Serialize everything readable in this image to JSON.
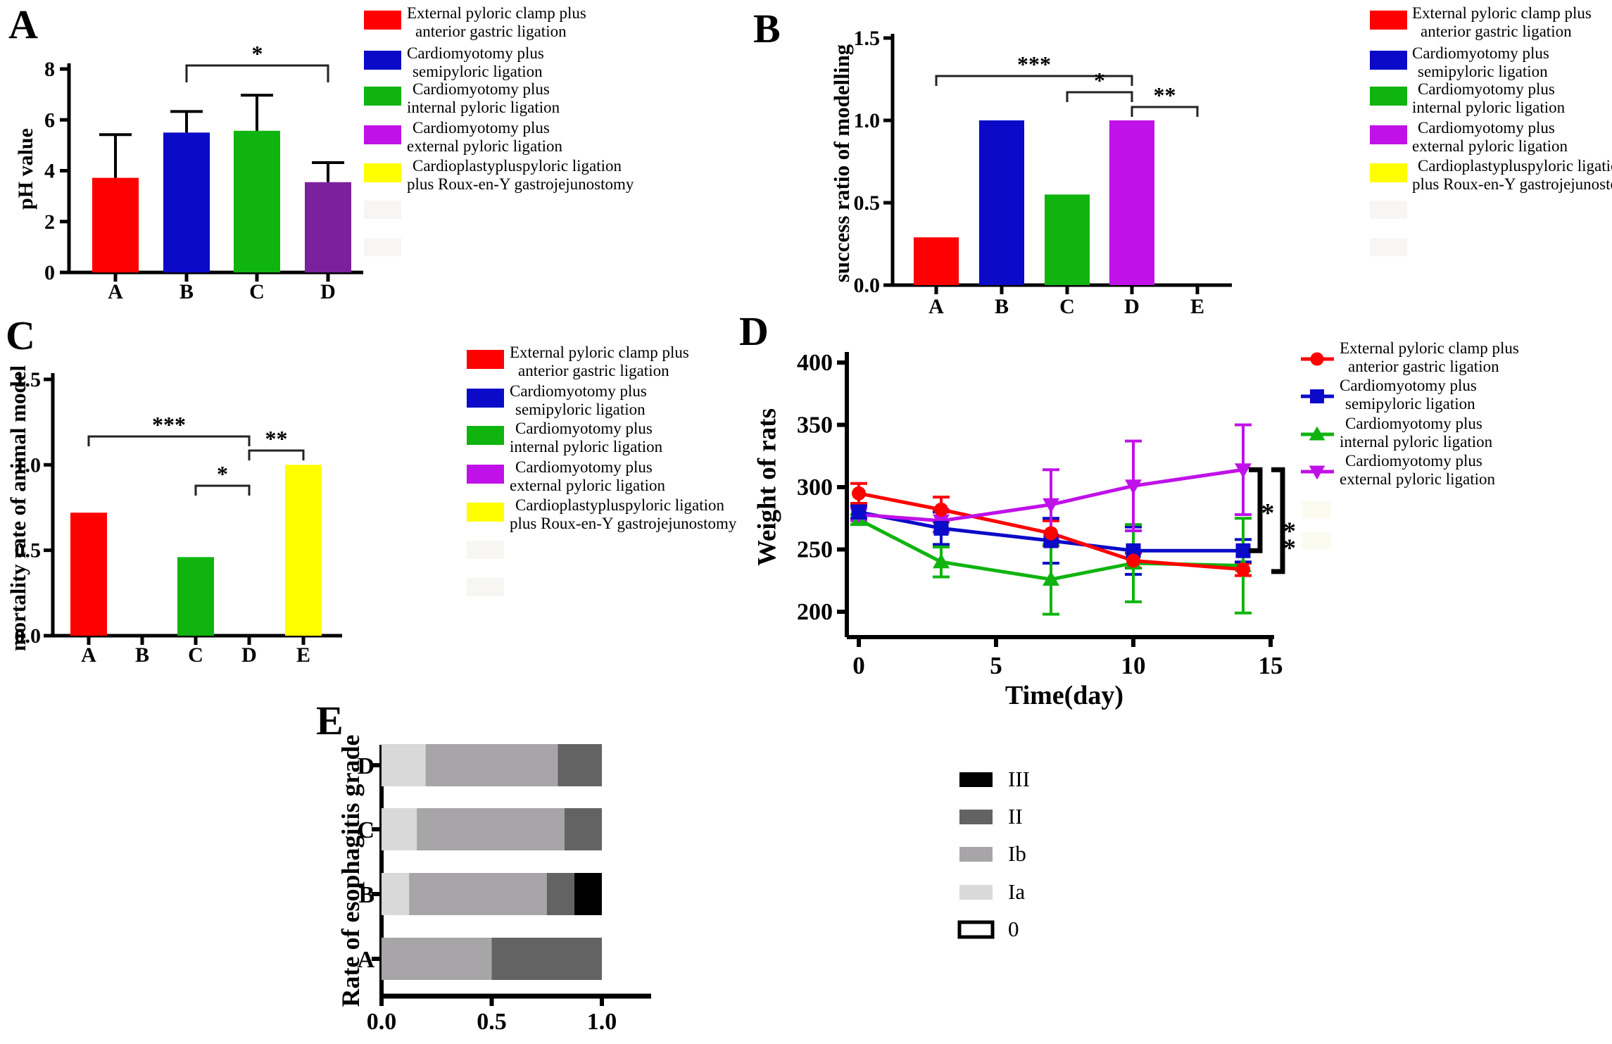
{
  "treatment_legend": [
    {
      "color": "#FF0000",
      "lines": [
        "External pyloric clamp plus",
        "anterior gastric ligation"
      ]
    },
    {
      "color": "#0A0AC8",
      "lines": [
        "Cardiomyotomy plus",
        "semipyloric ligation"
      ]
    },
    {
      "color": "#0FB40F",
      "lines": [
        "Cardiomyotomy plus",
        "internal pyloric ligation"
      ]
    },
    {
      "color": "#C011E8",
      "lines": [
        "Cardiomyotomy plus",
        "external  pyloric ligation"
      ]
    },
    {
      "color": "#FFFF00",
      "lines": [
        "Cardioplastypluspyloric ligation",
        "plus Roux-en-Y gastrojejunostomy"
      ]
    }
  ],
  "chart_data": [
    {
      "panel_label": "A",
      "type": "bar",
      "ylabel": "pH value",
      "ylim": [
        0,
        8
      ],
      "ytick_values": [
        0,
        2,
        4,
        6,
        8
      ],
      "ytick_labels": [
        "0",
        "2",
        "4",
        "6",
        "8"
      ],
      "categories": [
        "A",
        "B",
        "C",
        "D"
      ],
      "values": [
        3.72,
        5.5,
        5.57,
        3.55
      ],
      "errors_up": [
        1.7,
        0.83,
        1.4,
        0.77
      ],
      "bar_colors": [
        "#FF0000",
        "#0A0AC8",
        "#0FB40F",
        "#7B219E"
      ],
      "significance": [
        {
          "groups": [
            "B",
            "D"
          ],
          "label": "*"
        }
      ]
    },
    {
      "panel_label": "B",
      "type": "bar",
      "ylabel": "success ratio of modelling",
      "ylim": [
        0,
        1.5
      ],
      "ytick_values": [
        0,
        0.5,
        1.0,
        1.5
      ],
      "ytick_labels": [
        "0.0",
        "0.5",
        "1.0",
        "1.5"
      ],
      "categories": [
        "A",
        "B",
        "C",
        "D",
        "E"
      ],
      "values": [
        0.29,
        1.0,
        0.55,
        1.0,
        0
      ],
      "errors_up": [
        0,
        0,
        0,
        0,
        0
      ],
      "bar_colors": [
        "#FF0000",
        "#0A0AC8",
        "#0FB40F",
        "#C011E8",
        "#C011E8"
      ],
      "significance": [
        {
          "groups": [
            "A",
            "D"
          ],
          "label": "***"
        },
        {
          "groups": [
            "C",
            "D"
          ],
          "label": "*"
        },
        {
          "groups": [
            "D",
            "E"
          ],
          "label": "**"
        }
      ]
    },
    {
      "panel_label": "C",
      "type": "bar",
      "ylabel": "mortality rate of animal model",
      "ylim": [
        0,
        1.5
      ],
      "ytick_values": [
        0,
        0.5,
        1.0,
        1.5
      ],
      "ytick_labels": [
        "0.0",
        "0.5",
        "1.0",
        "1.5"
      ],
      "categories": [
        "A",
        "B",
        "C",
        "D",
        "E"
      ],
      "values": [
        0.72,
        0,
        0.46,
        0,
        1.0
      ],
      "errors_up": [
        0,
        0,
        0,
        0,
        0
      ],
      "bar_colors": [
        "#FF0000",
        "#0A0AC8",
        "#0FB40F",
        "#C011E8",
        "#FFFF00"
      ],
      "significance": [
        {
          "groups": [
            "A",
            "D"
          ],
          "label": "***"
        },
        {
          "groups": [
            "C",
            "D"
          ],
          "label": "*"
        },
        {
          "groups": [
            "D",
            "E"
          ],
          "label": "**"
        }
      ]
    },
    {
      "panel_label": "D",
      "type": "line",
      "ylabel": "Weight of rats",
      "xlabel": "Time(day)",
      "xlim": [
        0,
        15
      ],
      "xtick_values": [
        0,
        5,
        10,
        15
      ],
      "xtick_labels": [
        "0",
        "5",
        "10",
        "15"
      ],
      "ylim": [
        200,
        400
      ],
      "ytick_values": [
        200,
        250,
        300,
        350,
        400
      ],
      "ytick_labels": [
        "200",
        "250",
        "300",
        "350",
        "400"
      ],
      "x": [
        0,
        3,
        7,
        10,
        14
      ],
      "series": [
        {
          "name_lines": [
            "External pyloric clamp plus",
            "anterior gastric ligation"
          ],
          "color": "#FF0000",
          "marker": "circle",
          "values": [
            295,
            282,
            263,
            241,
            234
          ],
          "errors": [
            8,
            10,
            10,
            6,
            5
          ]
        },
        {
          "name_lines": [
            "Cardiomyotomy plus",
            "semipyloric ligation"
          ],
          "color": "#0A0AC8",
          "marker": "square",
          "values": [
            280,
            267,
            257,
            249,
            249
          ],
          "errors": [
            5,
            13,
            18,
            19,
            9
          ]
        },
        {
          "name_lines": [
            "Cardiomyotomy plus",
            "internal pyloric ligation"
          ],
          "color": "#0FB40F",
          "marker": "triangle-up",
          "values": [
            274,
            240,
            226,
            239,
            237
          ],
          "errors": [
            4,
            12,
            28,
            31,
            38
          ]
        },
        {
          "name_lines": [
            "Cardiomyotomy plus",
            "external  pyloric ligation"
          ],
          "color": "#C011E8",
          "marker": "triangle-down",
          "values": [
            278,
            273,
            286,
            301,
            314
          ],
          "errors": [
            5,
            9,
            28,
            36,
            36
          ]
        }
      ],
      "significance": [
        {
          "label": "*",
          "from_series": 3,
          "to_series": 1
        },
        {
          "label": "**",
          "from_series": 3,
          "to_series": 0
        }
      ]
    },
    {
      "panel_label": "E",
      "type": "stacked-bar-horizontal",
      "ylabel": "Rate of esophagitis grade",
      "xlim": [
        0,
        1.0
      ],
      "xtick_values": [
        0,
        0.5,
        1.0
      ],
      "xtick_labels": [
        "0.0",
        "0.5",
        "1.0"
      ],
      "grade_colors": {
        "Ia": "#D9D9D9",
        "Ib": "#A8A5A8",
        "II": "#636363",
        "III": "#000000",
        "0": "#FFFFFF"
      },
      "rows": [
        {
          "category": "D",
          "segments": [
            {
              "grade": "Ia",
              "value": 0.2
            },
            {
              "grade": "Ib",
              "value": 0.6
            },
            {
              "grade": "II",
              "value": 0.2
            }
          ]
        },
        {
          "category": "C",
          "segments": [
            {
              "grade": "Ia",
              "value": 0.16
            },
            {
              "grade": "Ib",
              "value": 0.67
            },
            {
              "grade": "II",
              "value": 0.17
            }
          ]
        },
        {
          "category": "B",
          "segments": [
            {
              "grade": "Ia",
              "value": 0.125
            },
            {
              "grade": "Ib",
              "value": 0.625
            },
            {
              "grade": "II",
              "value": 0.125
            },
            {
              "grade": "III",
              "value": 0.125
            }
          ]
        },
        {
          "category": "A",
          "segments": [
            {
              "grade": "Ib",
              "value": 0.5
            },
            {
              "grade": "II",
              "value": 0.5
            }
          ]
        }
      ],
      "legend": [
        {
          "label": "III",
          "color": "#000000",
          "outlined": false
        },
        {
          "label": "II",
          "color": "#636363",
          "outlined": false
        },
        {
          "label": "Ib",
          "color": "#A8A5A8",
          "outlined": false
        },
        {
          "label": "Ia",
          "color": "#D9D9D9",
          "outlined": false
        },
        {
          "label": "0",
          "color": "#FFFFFF",
          "outlined": true
        }
      ]
    }
  ]
}
